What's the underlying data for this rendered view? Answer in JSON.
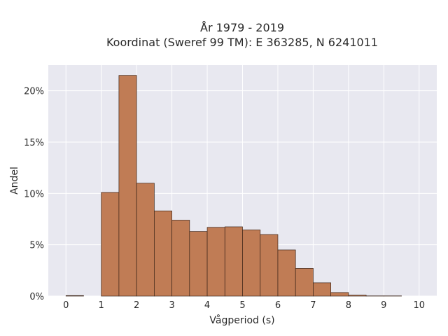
{
  "chart_data": {
    "type": "bar",
    "title_line1": "År 1979 - 2019",
    "title_line2": "Koordinat (Sweref 99 TM): E 363285, N 6241011",
    "xlabel": "Vågperiod (s)",
    "ylabel": "Andel",
    "bin_edges": [
      0,
      0.5,
      1,
      1.5,
      2,
      2.5,
      3,
      3.5,
      4,
      4.5,
      5,
      5.5,
      6,
      6.5,
      7,
      7.5,
      8,
      8.5,
      9,
      9.5
    ],
    "values": [
      0.05,
      0.0,
      10.1,
      21.5,
      11.0,
      8.3,
      7.4,
      6.3,
      6.7,
      6.75,
      6.45,
      6.0,
      4.5,
      2.7,
      1.3,
      0.35,
      0.1,
      0.02,
      0.02
    ],
    "xticks": [
      0,
      1,
      2,
      3,
      4,
      5,
      6,
      7,
      8,
      9,
      10
    ],
    "yticks": [
      0,
      5,
      10,
      15,
      20
    ],
    "ytick_labels": [
      "0%",
      "5%",
      "10%",
      "15%",
      "20%"
    ],
    "xlim": [
      -0.5,
      10.5
    ],
    "ylim": [
      0,
      22.5
    ],
    "grid": true,
    "colors": {
      "bar_fill": "#c07c55",
      "bar_stroke": "#3b2418",
      "plot_background": "#e8e8f0",
      "grid": "#ffffff"
    }
  }
}
